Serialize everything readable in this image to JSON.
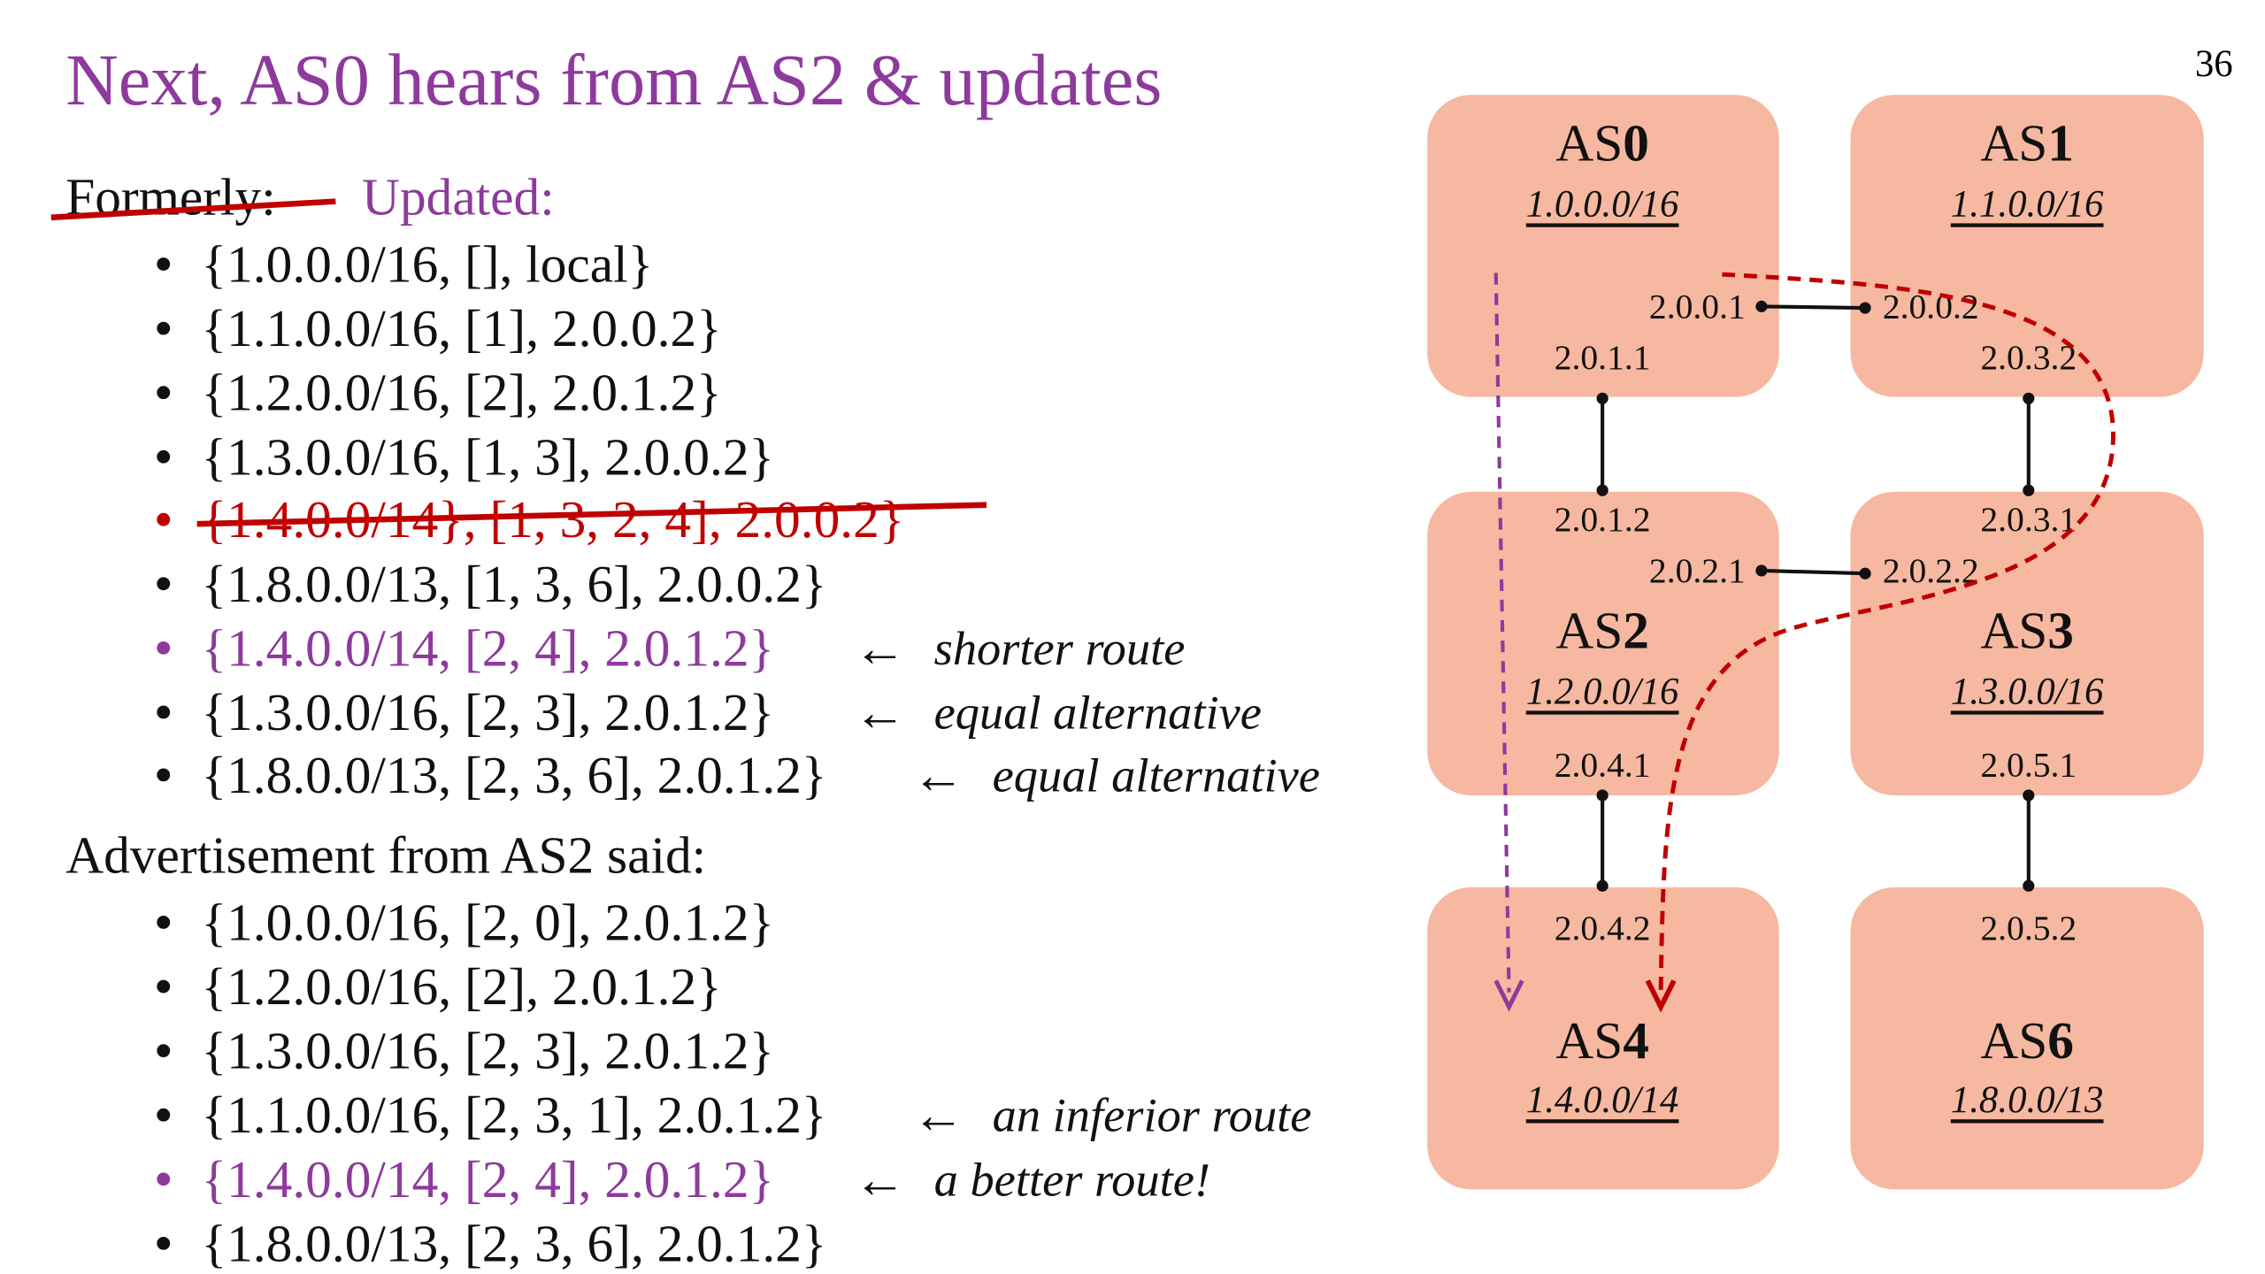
{
  "title": "Next, AS0 hears from AS2 & updates",
  "page_number": "36",
  "formerly": "Formerly:",
  "updated": "Updated:",
  "updated_routes": [
    {
      "text": "{1.0.0.0/16, [], local}"
    },
    {
      "text": "{1.1.0.0/16, [1], 2.0.0.2}"
    },
    {
      "text": "{1.2.0.0/16, [2], 2.0.1.2}"
    },
    {
      "text": "{1.3.0.0/16, [1, 3], 2.0.0.2}"
    },
    {
      "text": "{1.4.0.0/14}, [1, 3, 2, 4], 2.0.0.2}"
    },
    {
      "text": "{1.8.0.0/13, [1, 3, 6], 2.0.0.2}"
    },
    {
      "text": "{1.4.0.0/14, [2, 4], 2.0.1.2}",
      "arrow": "←",
      "note": "shorter route"
    },
    {
      "text": "{1.3.0.0/16, [2, 3], 2.0.1.2}",
      "arrow": "←",
      "note": "equal alternative"
    },
    {
      "text": "{1.8.0.0/13, [2, 3, 6], 2.0.1.2}",
      "arrow": "←",
      "note": "equal alternative"
    }
  ],
  "advertisement_heading": "Advertisement from AS2 said:",
  "advertised_routes": [
    {
      "text": "{1.0.0.0/16, [2, 0], 2.0.1.2}"
    },
    {
      "text": "{1.2.0.0/16, [2], 2.0.1.2}"
    },
    {
      "text": "{1.3.0.0/16, [2, 3], 2.0.1.2}"
    },
    {
      "text": "{1.1.0.0/16, [2, 3, 1], 2.0.1.2}",
      "arrow": "←",
      "note": "an inferior route"
    },
    {
      "text": "{1.4.0.0/14, [2, 4], 2.0.1.2}",
      "arrow": "←",
      "note": "a better route!"
    },
    {
      "text": "{1.8.0.0/13, [2, 3, 6], 2.0.1.2}"
    }
  ],
  "nodes": [
    {
      "name": "AS",
      "number": "0",
      "prefix": "1.0.0.0/16"
    },
    {
      "name": "AS",
      "number": "1",
      "prefix": "1.1.0.0/16"
    },
    {
      "name": "AS",
      "number": "2",
      "prefix": "1.2.0.0/16"
    },
    {
      "name": "AS",
      "number": "3",
      "prefix": "1.3.0.0/16"
    },
    {
      "name": "AS",
      "number": "4",
      "prefix": "1.4.0.0/14"
    },
    {
      "name": "AS",
      "number": "6",
      "prefix": "1.8.0.0/13"
    }
  ],
  "interfaces": [
    "2.0.0.1",
    "2.0.0.2",
    "2.0.1.1",
    "2.0.3.2",
    "2.0.1.2",
    "2.0.3.1",
    "2.0.2.1",
    "2.0.2.2",
    "2.0.4.1",
    "2.0.5.1",
    "2.0.4.2",
    "2.0.5.2"
  ]
}
